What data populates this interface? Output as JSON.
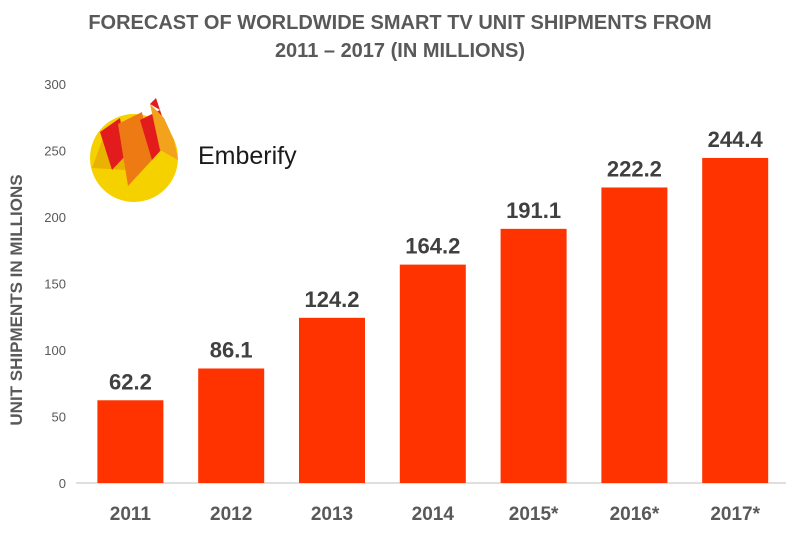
{
  "brand": {
    "name": "Emberify"
  },
  "colors": {
    "bar": "#ff3300",
    "text": "#595959",
    "axis": "#bfbfbf"
  },
  "chart_data": {
    "type": "bar",
    "title_lines": [
      "FORECAST OF WORLDWIDE SMART TV UNIT SHIPMENTS FROM",
      "2011 – 2017 (IN MILLIONS)"
    ],
    "ylabel": "UNIT SHIPMENTS IN MILLIONS",
    "xlabel": "",
    "categories": [
      "2011",
      "2012",
      "2013",
      "2014",
      "2015*",
      "2016*",
      "2017*"
    ],
    "values": [
      62.2,
      86.1,
      124.2,
      164.2,
      191.1,
      222.2,
      244.4
    ],
    "value_labels": [
      "62.2",
      "86.1",
      "124.2",
      "164.2",
      "191.1",
      "222.2",
      "244.4"
    ],
    "yticks": [
      "0",
      "50",
      "100",
      "150",
      "200",
      "250",
      "300"
    ],
    "ylim": [
      0,
      300
    ],
    "grid": false,
    "legend": "none"
  }
}
